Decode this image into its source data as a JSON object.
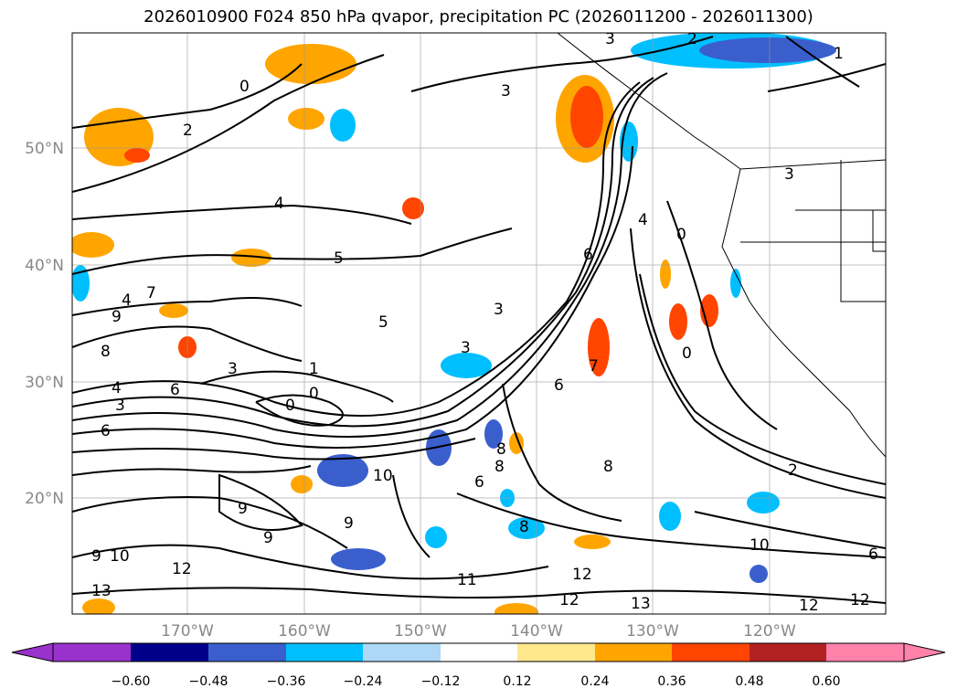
{
  "title": "2026010900 F024 850 hPa qvapor, precipitation PC (2026011200 - 2026011300)",
  "map": {
    "lon_ticks": [
      "170°W",
      "160°W",
      "150°W",
      "140°W",
      "130°W",
      "120°W"
    ],
    "lat_ticks": [
      "50°N",
      "40°N",
      "30°N",
      "20°N"
    ],
    "contour_labels": [
      "3",
      "2",
      "1",
      "0",
      "2",
      "3",
      "4",
      "5",
      "4",
      "7",
      "9",
      "8",
      "4",
      "3",
      "6",
      "3",
      "1",
      "0",
      "0",
      "5",
      "3",
      "3",
      "6",
      "9",
      "9",
      "9",
      "10",
      "8",
      "6",
      "6",
      "8",
      "8",
      "10",
      "12",
      "11",
      "12",
      "12",
      "13",
      "13",
      "9",
      "12",
      "12",
      "10",
      "8",
      "6",
      "0",
      "0",
      "3",
      "7",
      "2",
      "4",
      "6"
    ]
  },
  "colorbar": {
    "labels": [
      "−0.60",
      "−0.48",
      "−0.36",
      "−0.24",
      "−0.12",
      "0.12",
      "0.24",
      "0.36",
      "0.48",
      "0.60"
    ],
    "colors": [
      "#9932cc",
      "#00008b",
      "#3a5fcd",
      "#00bfff",
      "#add8f6",
      "#ffffff",
      "#ffe88c",
      "#ffa500",
      "#ff4500",
      "#b22222",
      "#ff82ab"
    ]
  }
}
